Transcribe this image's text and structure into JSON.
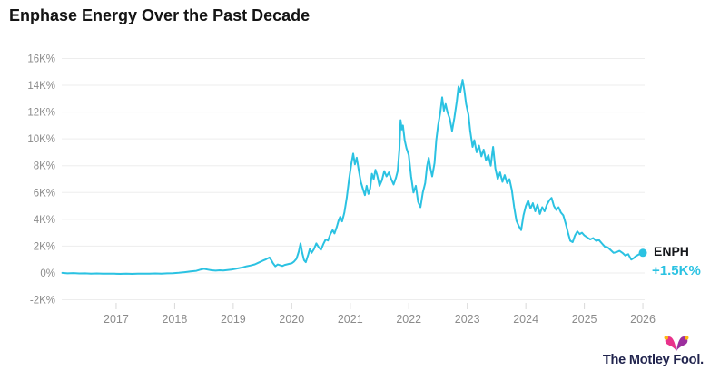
{
  "header": {
    "title": "Enphase Energy Over the Past Decade"
  },
  "series_label": {
    "ticker": "ENPH",
    "change": "+1.5K%"
  },
  "branding": {
    "wordmark": "The Motley Fool."
  },
  "colors": {
    "line": "#2BC2E2",
    "change_text": "#2BC2E2",
    "title_text": "#141414",
    "ticker_text": "#15171B",
    "axis_text": "#8B8B8B",
    "gridline": "#EDEDED",
    "tick": "#D9D9D9",
    "wordmark_text": "#20234D",
    "hat_pink": "#E8328B",
    "hat_purple": "#9C2E9E",
    "hat_bell": "#FDB913"
  },
  "chart_data": {
    "type": "line",
    "title": "Enphase Energy Over the Past Decade",
    "xlabel": "",
    "ylabel": "",
    "unit": "K% = thousands of percent total return",
    "grid": "horizontal",
    "legend": "none",
    "xlim": [
      2016.07,
      2026.03
    ],
    "ylim": [
      -2,
      16
    ],
    "x_ticks": [
      2017,
      2018,
      2019,
      2020,
      2021,
      2022,
      2023,
      2024,
      2025,
      2026
    ],
    "x_tick_labels": [
      "2017",
      "2018",
      "2019",
      "2020",
      "2021",
      "2022",
      "2023",
      "2024",
      "2025",
      "2026"
    ],
    "y_ticks": [
      -2,
      0,
      2,
      4,
      6,
      8,
      10,
      12,
      14,
      16
    ],
    "y_tick_labels": [
      "-2K%",
      "0%",
      "2K%",
      "4K%",
      "6K%",
      "8K%",
      "10K%",
      "12K%",
      "14K%",
      "16K%"
    ],
    "end_dot": true,
    "series": [
      {
        "name": "ENPH",
        "end_value_label": "+1.5K%",
        "points": [
          [
            2016.08,
            0
          ],
          [
            2016.17,
            -0.03
          ],
          [
            2016.27,
            -0.01
          ],
          [
            2016.37,
            -0.04
          ],
          [
            2016.47,
            -0.03
          ],
          [
            2016.57,
            -0.05
          ],
          [
            2016.67,
            -0.04
          ],
          [
            2016.77,
            -0.06
          ],
          [
            2016.87,
            -0.05
          ],
          [
            2016.97,
            -0.06
          ],
          [
            2017.07,
            -0.07
          ],
          [
            2017.17,
            -0.06
          ],
          [
            2017.27,
            -0.07
          ],
          [
            2017.37,
            -0.06
          ],
          [
            2017.47,
            -0.05
          ],
          [
            2017.57,
            -0.06
          ],
          [
            2017.67,
            -0.04
          ],
          [
            2017.77,
            -0.05
          ],
          [
            2017.87,
            -0.03
          ],
          [
            2017.97,
            -0.02
          ],
          [
            2018.07,
            0.01
          ],
          [
            2018.17,
            0.06
          ],
          [
            2018.27,
            0.11
          ],
          [
            2018.37,
            0.16
          ],
          [
            2018.45,
            0.26
          ],
          [
            2018.5,
            0.31
          ],
          [
            2018.57,
            0.25
          ],
          [
            2018.63,
            0.2
          ],
          [
            2018.7,
            0.17
          ],
          [
            2018.77,
            0.2
          ],
          [
            2018.83,
            0.18
          ],
          [
            2018.9,
            0.22
          ],
          [
            2018.97,
            0.25
          ],
          [
            2019.03,
            0.3
          ],
          [
            2019.1,
            0.36
          ],
          [
            2019.17,
            0.42
          ],
          [
            2019.23,
            0.5
          ],
          [
            2019.3,
            0.56
          ],
          [
            2019.37,
            0.64
          ],
          [
            2019.43,
            0.76
          ],
          [
            2019.5,
            0.9
          ],
          [
            2019.56,
            1.02
          ],
          [
            2019.62,
            1.15
          ],
          [
            2019.65,
            0.95
          ],
          [
            2019.68,
            0.72
          ],
          [
            2019.72,
            0.5
          ],
          [
            2019.76,
            0.63
          ],
          [
            2019.8,
            0.58
          ],
          [
            2019.84,
            0.52
          ],
          [
            2019.88,
            0.6
          ],
          [
            2019.92,
            0.64
          ],
          [
            2019.96,
            0.68
          ],
          [
            2020.0,
            0.72
          ],
          [
            2020.04,
            0.85
          ],
          [
            2020.08,
            1.05
          ],
          [
            2020.12,
            1.6
          ],
          [
            2020.15,
            2.2
          ],
          [
            2020.18,
            1.5
          ],
          [
            2020.21,
            0.95
          ],
          [
            2020.24,
            0.8
          ],
          [
            2020.28,
            1.35
          ],
          [
            2020.31,
            1.8
          ],
          [
            2020.34,
            1.5
          ],
          [
            2020.38,
            1.78
          ],
          [
            2020.42,
            2.2
          ],
          [
            2020.46,
            1.92
          ],
          [
            2020.5,
            1.72
          ],
          [
            2020.54,
            2.15
          ],
          [
            2020.58,
            2.5
          ],
          [
            2020.62,
            2.42
          ],
          [
            2020.66,
            2.9
          ],
          [
            2020.7,
            3.2
          ],
          [
            2020.73,
            2.95
          ],
          [
            2020.77,
            3.45
          ],
          [
            2020.8,
            3.9
          ],
          [
            2020.83,
            4.2
          ],
          [
            2020.86,
            3.85
          ],
          [
            2020.9,
            4.5
          ],
          [
            2020.94,
            5.6
          ],
          [
            2020.98,
            7.0
          ],
          [
            2021.02,
            8.2
          ],
          [
            2021.05,
            8.9
          ],
          [
            2021.08,
            8.1
          ],
          [
            2021.11,
            8.6
          ],
          [
            2021.14,
            7.8
          ],
          [
            2021.18,
            6.8
          ],
          [
            2021.22,
            6.2
          ],
          [
            2021.25,
            5.8
          ],
          [
            2021.28,
            6.5
          ],
          [
            2021.31,
            5.9
          ],
          [
            2021.34,
            6.3
          ],
          [
            2021.37,
            7.4
          ],
          [
            2021.4,
            7.0
          ],
          [
            2021.43,
            7.7
          ],
          [
            2021.46,
            7.3
          ],
          [
            2021.5,
            6.5
          ],
          [
            2021.54,
            6.9
          ],
          [
            2021.58,
            7.6
          ],
          [
            2021.62,
            7.2
          ],
          [
            2021.66,
            7.5
          ],
          [
            2021.7,
            7.0
          ],
          [
            2021.74,
            6.6
          ],
          [
            2021.78,
            7.1
          ],
          [
            2021.81,
            7.6
          ],
          [
            2021.84,
            9.2
          ],
          [
            2021.86,
            11.4
          ],
          [
            2021.88,
            10.7
          ],
          [
            2021.9,
            11.0
          ],
          [
            2021.93,
            9.9
          ],
          [
            2021.96,
            9.3
          ],
          [
            2022.0,
            8.8
          ],
          [
            2022.04,
            7.2
          ],
          [
            2022.08,
            6.0
          ],
          [
            2022.12,
            6.5
          ],
          [
            2022.16,
            5.3
          ],
          [
            2022.2,
            4.9
          ],
          [
            2022.24,
            6.0
          ],
          [
            2022.28,
            6.7
          ],
          [
            2022.31,
            7.9
          ],
          [
            2022.34,
            8.6
          ],
          [
            2022.37,
            7.8
          ],
          [
            2022.4,
            7.2
          ],
          [
            2022.44,
            8.2
          ],
          [
            2022.47,
            9.9
          ],
          [
            2022.5,
            11.0
          ],
          [
            2022.54,
            12.0
          ],
          [
            2022.57,
            13.1
          ],
          [
            2022.6,
            12.1
          ],
          [
            2022.63,
            12.6
          ],
          [
            2022.66,
            12.0
          ],
          [
            2022.7,
            11.5
          ],
          [
            2022.74,
            10.6
          ],
          [
            2022.78,
            11.6
          ],
          [
            2022.82,
            12.8
          ],
          [
            2022.85,
            13.9
          ],
          [
            2022.88,
            13.5
          ],
          [
            2022.92,
            14.4
          ],
          [
            2022.95,
            13.6
          ],
          [
            2022.98,
            12.6
          ],
          [
            2023.02,
            11.8
          ],
          [
            2023.05,
            10.6
          ],
          [
            2023.09,
            9.4
          ],
          [
            2023.12,
            9.9
          ],
          [
            2023.16,
            9.0
          ],
          [
            2023.2,
            9.5
          ],
          [
            2023.24,
            8.7
          ],
          [
            2023.28,
            9.2
          ],
          [
            2023.32,
            8.4
          ],
          [
            2023.36,
            8.8
          ],
          [
            2023.4,
            8.0
          ],
          [
            2023.44,
            9.4
          ],
          [
            2023.48,
            7.8
          ],
          [
            2023.52,
            7.0
          ],
          [
            2023.56,
            7.5
          ],
          [
            2023.6,
            6.8
          ],
          [
            2023.64,
            7.3
          ],
          [
            2023.68,
            6.7
          ],
          [
            2023.72,
            7.0
          ],
          [
            2023.76,
            6.2
          ],
          [
            2023.8,
            4.9
          ],
          [
            2023.84,
            3.9
          ],
          [
            2023.88,
            3.5
          ],
          [
            2023.92,
            3.2
          ],
          [
            2023.96,
            4.3
          ],
          [
            2024.0,
            5.0
          ],
          [
            2024.04,
            5.4
          ],
          [
            2024.08,
            4.8
          ],
          [
            2024.12,
            5.2
          ],
          [
            2024.16,
            4.6
          ],
          [
            2024.2,
            5.1
          ],
          [
            2024.24,
            4.4
          ],
          [
            2024.28,
            4.9
          ],
          [
            2024.32,
            4.6
          ],
          [
            2024.36,
            5.1
          ],
          [
            2024.4,
            5.4
          ],
          [
            2024.44,
            5.6
          ],
          [
            2024.48,
            5.0
          ],
          [
            2024.52,
            4.7
          ],
          [
            2024.56,
            4.9
          ],
          [
            2024.6,
            4.5
          ],
          [
            2024.64,
            4.3
          ],
          [
            2024.68,
            3.7
          ],
          [
            2024.72,
            3.0
          ],
          [
            2024.76,
            2.4
          ],
          [
            2024.8,
            2.3
          ],
          [
            2024.84,
            2.8
          ],
          [
            2024.88,
            3.1
          ],
          [
            2024.92,
            2.9
          ],
          [
            2024.96,
            3.0
          ],
          [
            2025.0,
            2.8
          ],
          [
            2025.05,
            2.65
          ],
          [
            2025.1,
            2.5
          ],
          [
            2025.15,
            2.6
          ],
          [
            2025.2,
            2.4
          ],
          [
            2025.25,
            2.45
          ],
          [
            2025.3,
            2.2
          ],
          [
            2025.35,
            1.95
          ],
          [
            2025.4,
            1.9
          ],
          [
            2025.45,
            1.7
          ],
          [
            2025.5,
            1.5
          ],
          [
            2025.55,
            1.55
          ],
          [
            2025.6,
            1.65
          ],
          [
            2025.65,
            1.5
          ],
          [
            2025.7,
            1.3
          ],
          [
            2025.75,
            1.4
          ],
          [
            2025.8,
            1.0
          ],
          [
            2025.84,
            1.1
          ],
          [
            2025.88,
            1.25
          ],
          [
            2025.92,
            1.35
          ],
          [
            2025.96,
            1.45
          ],
          [
            2026.0,
            1.5
          ]
        ]
      }
    ]
  }
}
